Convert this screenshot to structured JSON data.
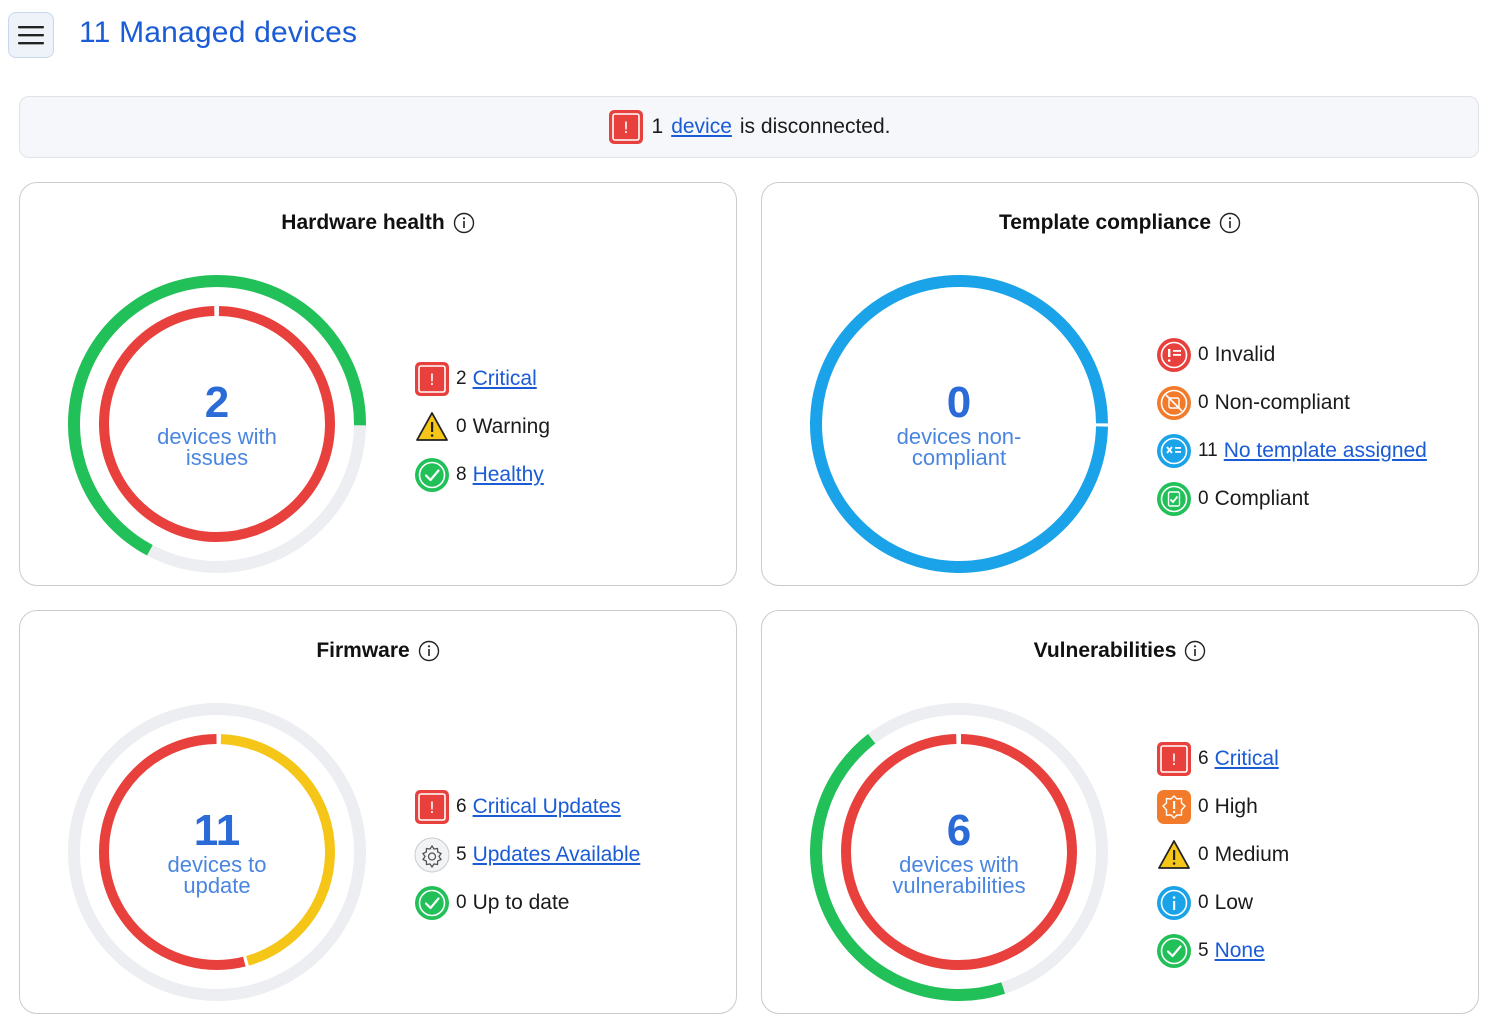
{
  "header": {
    "title": "11 Managed devices"
  },
  "banner": {
    "count": "1",
    "link": "device",
    "text": "is disconnected."
  },
  "cards": {
    "hardware": {
      "title": "Hardware health",
      "center_value": "2",
      "center_label": "devices with issues",
      "legend": [
        {
          "count": "2",
          "label": "Critical",
          "link": true,
          "icon": "critical-icon"
        },
        {
          "count": "0",
          "label": "Warning",
          "link": false,
          "icon": "warning-icon"
        },
        {
          "count": "8",
          "label": "Healthy",
          "link": true,
          "icon": "healthy-icon"
        }
      ],
      "rings": {
        "outer": {
          "critical": 0,
          "warning": 0,
          "healthy": 8,
          "unknown": 1
        },
        "inner": {
          "critical": 2
        }
      }
    },
    "template": {
      "title": "Template compliance",
      "center_value": "0",
      "center_label": "devices non-compliant",
      "legend": [
        {
          "count": "0",
          "label": "Invalid",
          "link": false,
          "icon": "invalid-icon"
        },
        {
          "count": "0",
          "label": "Non-compliant",
          "link": false,
          "icon": "non-compliant-icon"
        },
        {
          "count": "11",
          "label": "No template assigned",
          "link": true,
          "icon": "no-template-icon"
        },
        {
          "count": "0",
          "label": "Compliant",
          "link": false,
          "icon": "compliant-icon"
        }
      ],
      "rings": {
        "outer": {
          "no_template": 11
        }
      }
    },
    "firmware": {
      "title": "Firmware",
      "center_value": "11",
      "center_label": "devices to update",
      "legend": [
        {
          "count": "6",
          "label": "Critical Updates",
          "link": true,
          "icon": "critical-icon"
        },
        {
          "count": "5",
          "label": "Updates Available",
          "link": true,
          "icon": "update-available-icon"
        },
        {
          "count": "0",
          "label": "Up to date",
          "link": false,
          "icon": "healthy-icon"
        }
      ],
      "rings": {
        "inner": {
          "critical": 6,
          "available": 5
        }
      }
    },
    "vulnerabilities": {
      "title": "Vulnerabilities",
      "center_value": "6",
      "center_label": "devices with vulnerabilities",
      "legend": [
        {
          "count": "6",
          "label": "Critical",
          "link": true,
          "icon": "critical-icon"
        },
        {
          "count": "0",
          "label": "High",
          "link": false,
          "icon": "high-icon"
        },
        {
          "count": "0",
          "label": "Medium",
          "link": false,
          "icon": "warning-icon"
        },
        {
          "count": "0",
          "label": "Low",
          "link": false,
          "icon": "low-icon"
        },
        {
          "count": "5",
          "label": "None",
          "link": true,
          "icon": "healthy-icon"
        }
      ],
      "rings": {
        "outer": {
          "none": 5
        },
        "inner": {
          "critical": 6
        }
      }
    }
  },
  "colors": {
    "critical": "#e8413d",
    "healthy": "#22c058",
    "warning": "#f5c518",
    "blue": "#1aa3e8",
    "track": "#eceef1",
    "link": "#1a5bd6",
    "orange": "#f27b2b"
  }
}
